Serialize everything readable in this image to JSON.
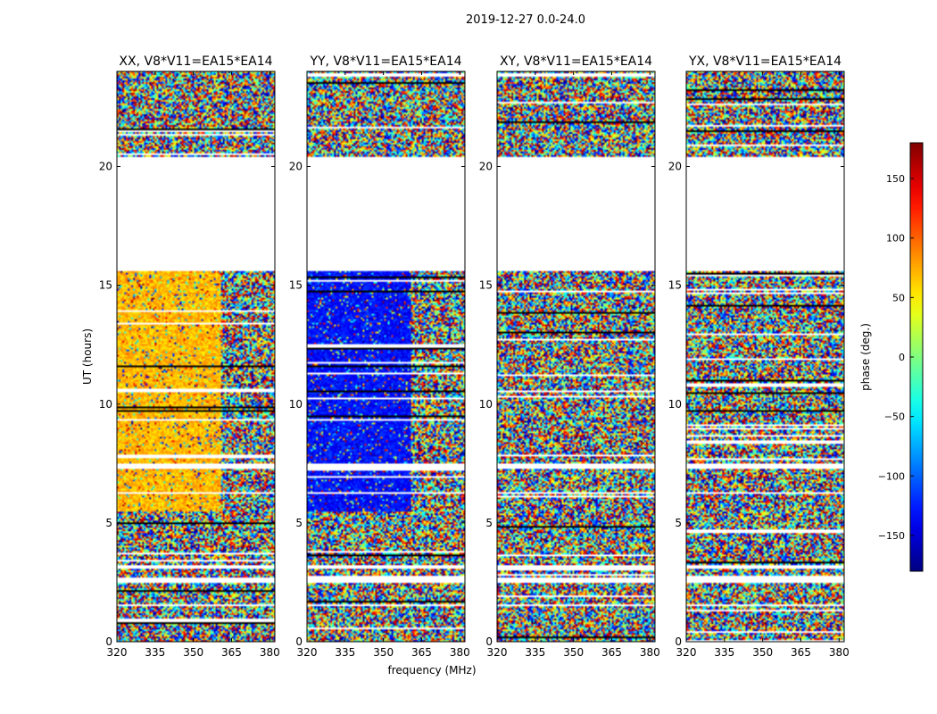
{
  "figure": {
    "suptitle": "2019-12-27 0.0-24.0"
  },
  "chart_data": [
    {
      "type": "heatmap",
      "title": "XX, V8*V11=EA15*EA14",
      "xlabel": "",
      "ylabel": "UT (hours)",
      "xlim": [
        320,
        382
      ],
      "ylim": [
        0,
        24
      ],
      "xticks": [
        320,
        335,
        350,
        365,
        380
      ],
      "yticks": [
        0,
        5,
        10,
        15,
        20
      ],
      "base_phase": 70,
      "gaps_hours": [
        [
          15.6,
          20.4
        ],
        [
          7.3,
          7.5
        ],
        [
          6.2,
          6.3
        ],
        [
          3.1,
          3.2
        ],
        [
          2.5,
          2.7
        ],
        [
          1.5,
          1.6
        ]
      ]
    },
    {
      "type": "heatmap",
      "title": "YY, V8*V11=EA15*EA14",
      "xlabel": "frequency (MHz)",
      "ylabel": "",
      "xlim": [
        320,
        382
      ],
      "ylim": [
        0,
        24
      ],
      "xticks": [
        320,
        335,
        350,
        365,
        380
      ],
      "yticks": [
        0,
        5,
        10,
        15,
        20
      ],
      "base_phase": -130,
      "gaps_hours": [
        [
          15.6,
          20.4
        ],
        [
          7.3,
          7.5
        ],
        [
          6.2,
          6.3
        ],
        [
          3.1,
          3.2
        ],
        [
          2.5,
          2.7
        ],
        [
          1.5,
          1.6
        ]
      ]
    },
    {
      "type": "heatmap",
      "title": "XY, V8*V11=EA15*EA14",
      "xlabel": "",
      "ylabel": "",
      "xlim": [
        320,
        382
      ],
      "ylim": [
        0,
        24
      ],
      "xticks": [
        320,
        335,
        350,
        365,
        380
      ],
      "yticks": [
        0,
        5,
        10,
        15,
        20
      ],
      "base_phase": null,
      "gaps_hours": [
        [
          15.6,
          20.4
        ],
        [
          7.3,
          7.5
        ],
        [
          6.2,
          6.3
        ],
        [
          3.1,
          3.2
        ],
        [
          2.5,
          2.7
        ],
        [
          1.5,
          1.6
        ]
      ]
    },
    {
      "type": "heatmap",
      "title": "YX, V8*V11=EA15*EA14",
      "xlabel": "",
      "ylabel": "",
      "xlim": [
        320,
        382
      ],
      "ylim": [
        0,
        24
      ],
      "xticks": [
        320,
        335,
        350,
        365,
        380
      ],
      "yticks": [
        0,
        5,
        10,
        15,
        20
      ],
      "base_phase": null,
      "gaps_hours": [
        [
          15.6,
          20.4
        ],
        [
          7.3,
          7.5
        ],
        [
          6.2,
          6.3
        ],
        [
          3.1,
          3.2
        ],
        [
          2.5,
          2.7
        ],
        [
          1.5,
          1.6
        ]
      ]
    }
  ],
  "colorbar": {
    "label": "phase (deg.)",
    "range": [
      -180,
      180
    ],
    "ticks": [
      150,
      100,
      50,
      0,
      -50,
      -100,
      -150
    ],
    "tick_labels": [
      "150",
      "100",
      "50",
      "0",
      "−50",
      "−100",
      "−150"
    ],
    "colormap": "jet"
  }
}
